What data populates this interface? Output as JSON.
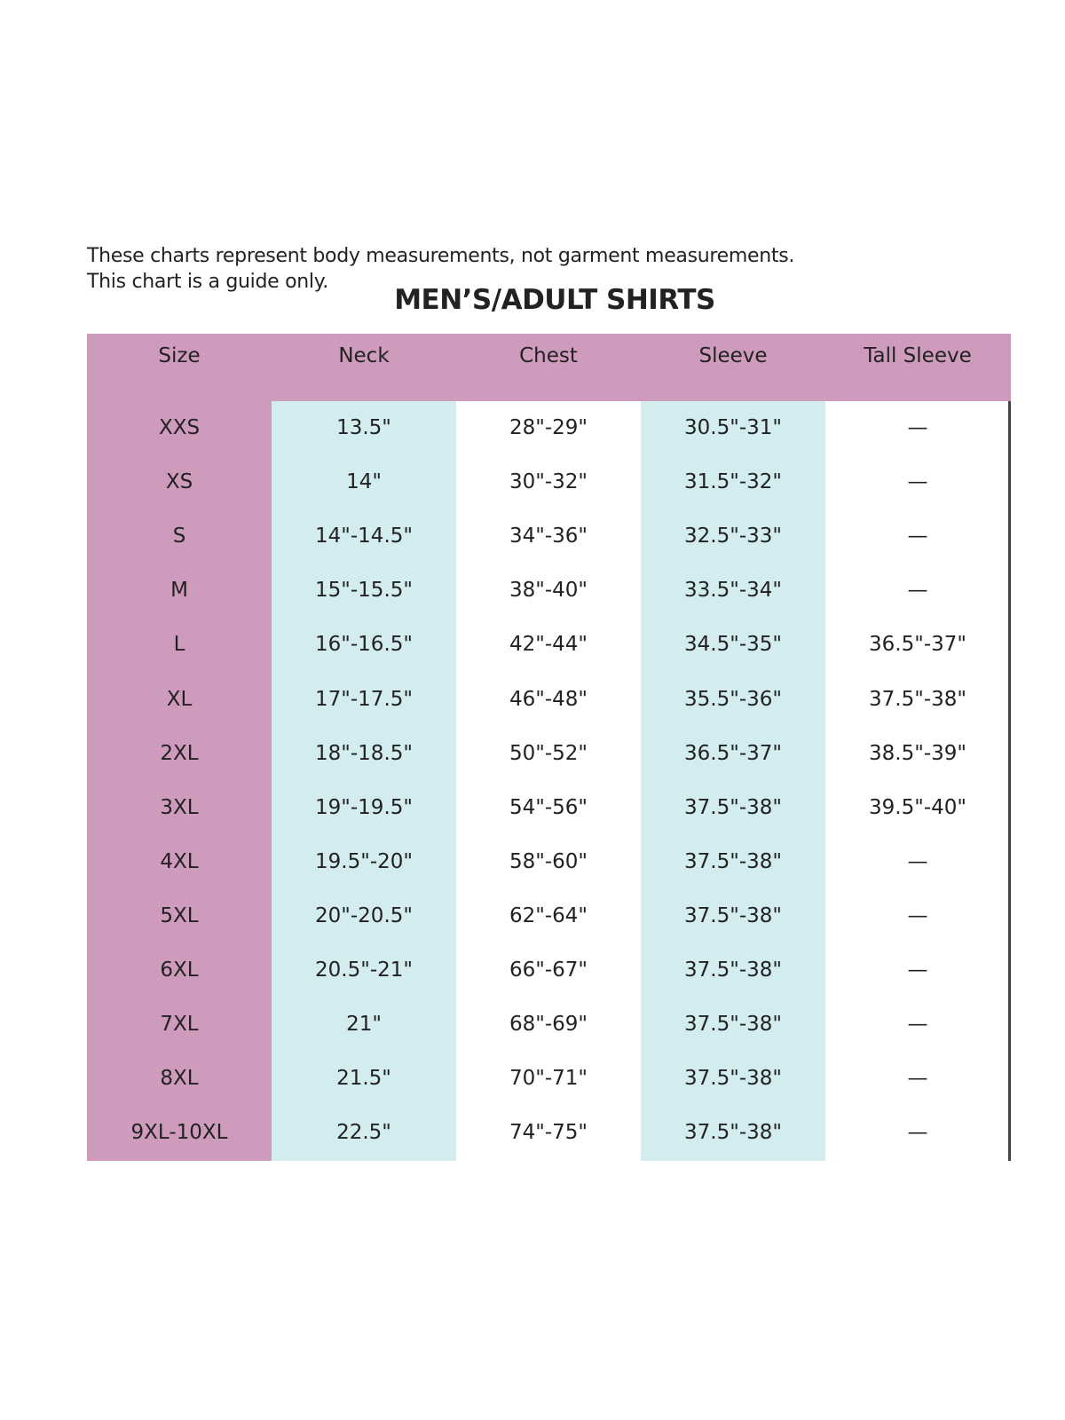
{
  "notes": [
    "These charts represent body measurements, not garment measurements.",
    "This chart is a guide only."
  ],
  "title": "MEN’S/ADULT SHIRTS",
  "colors": {
    "size_column": "#cf9bbd",
    "header": "#cf9bbd",
    "neck_sleeve_columns": "#d3ecf0"
  },
  "headers": [
    "Size",
    "Neck",
    "Chest",
    "Sleeve",
    "Tall Sleeve"
  ],
  "rows": [
    [
      "XXS",
      "13.5\"",
      "28\"-29\"",
      "30.5\"-31\"",
      "—"
    ],
    [
      "XS",
      "14\"",
      "30\"-32\"",
      "31.5\"-32\"",
      "—"
    ],
    [
      "S",
      "14\"-14.5\"",
      "34\"-36\"",
      "32.5\"-33\"",
      "—"
    ],
    [
      "M",
      "15\"-15.5\"",
      "38\"-40\"",
      "33.5\"-34\"",
      "—"
    ],
    [
      "L",
      "16\"-16.5\"",
      "42\"-44\"",
      "34.5\"-35\"",
      "36.5\"-37\""
    ],
    [
      "XL",
      "17\"-17.5\"",
      "46\"-48\"",
      "35.5\"-36\"",
      "37.5\"-38\""
    ],
    [
      "2XL",
      "18\"-18.5\"",
      "50\"-52\"",
      "36.5\"-37\"",
      "38.5\"-39\""
    ],
    [
      "3XL",
      "19\"-19.5\"",
      "54\"-56\"",
      "37.5\"-38\"",
      "39.5\"-40\""
    ],
    [
      "4XL",
      "19.5\"-20\"",
      "58\"-60\"",
      "37.5\"-38\"",
      "—"
    ],
    [
      "5XL",
      "20\"-20.5\"",
      "62\"-64\"",
      "37.5\"-38\"",
      "—"
    ],
    [
      "6XL",
      "20.5\"-21\"",
      "66\"-67\"",
      "37.5\"-38\"",
      "—"
    ],
    [
      "7XL",
      "21\"",
      "68\"-69\"",
      "37.5\"-38\"",
      "—"
    ],
    [
      "8XL",
      "21.5\"",
      "70\"-71\"",
      "37.5\"-38\"",
      "—"
    ],
    [
      "9XL-10XL",
      "22.5\"",
      "74\"-75\"",
      "37.5\"-38\"",
      "—"
    ]
  ]
}
